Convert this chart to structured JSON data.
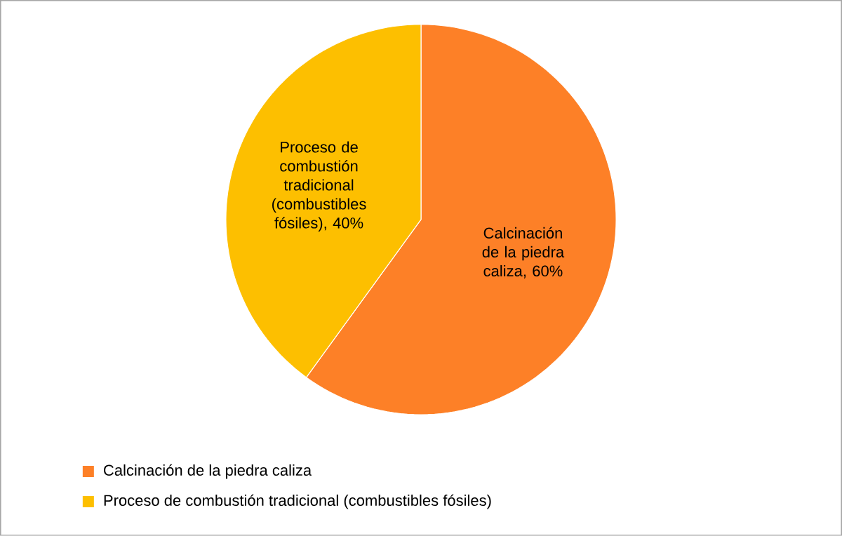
{
  "chart_data": {
    "type": "pie",
    "categories": [
      "Calcinación de la piedra caliza",
      "Proceso de combustión tradicional (combustibles fósiles)"
    ],
    "values": [
      60,
      40
    ],
    "colors": [
      "#fd8027",
      "#fdbf00"
    ],
    "value_labels": [
      "Calcinación de la piedra caliza, 60%",
      "Proceso de combustión tradicional (combustibles fósiles), 40%"
    ],
    "legend": "bottom left"
  }
}
